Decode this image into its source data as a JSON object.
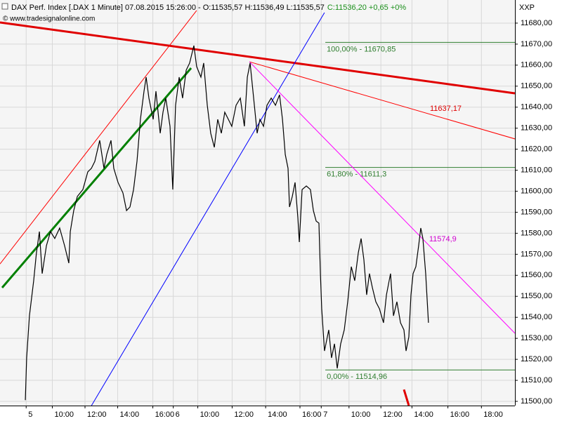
{
  "chart_data": {
    "type": "line",
    "title": "DAX Perf. Index [.DAX  1 Minute] 07.08.2015 15:26:00 - O:11535,57 H:11536,49 L:11535,57",
    "subtitle": "C:11536,20 +0,65 +0%",
    "watermark": "© www.tradesignalonline.com",
    "axis_label": "XXP",
    "grid": true,
    "xlim": [
      0,
      31.5
    ],
    "ylim": [
      11498,
      11691
    ],
    "yticks": [
      {
        "value": 11500,
        "label": "11500,00"
      },
      {
        "value": 11510,
        "label": "11510,00"
      },
      {
        "value": 11520,
        "label": "11520,00"
      },
      {
        "value": 11530,
        "label": "11530,00"
      },
      {
        "value": 11540,
        "label": "11540,00"
      },
      {
        "value": 11550,
        "label": "11550,00"
      },
      {
        "value": 11560,
        "label": "11560,00"
      },
      {
        "value": 11570,
        "label": "11570,00"
      },
      {
        "value": 11580,
        "label": "11580,00"
      },
      {
        "value": 11590,
        "label": "11590,00"
      },
      {
        "value": 11600,
        "label": "11600,00"
      },
      {
        "value": 11610,
        "label": "11610,00"
      },
      {
        "value": 11620,
        "label": "11620,00"
      },
      {
        "value": 11630,
        "label": "11630,00"
      },
      {
        "value": 11640,
        "label": "11640,00"
      },
      {
        "value": 11650,
        "label": "11650,00"
      },
      {
        "value": 11660,
        "label": "11660,00"
      },
      {
        "value": 11670,
        "label": "11670,00"
      },
      {
        "value": 11680,
        "label": "11680,00"
      }
    ],
    "xticks": [
      {
        "value": 1.6,
        "label": "5"
      },
      {
        "value": 3.2,
        "label": "10:00"
      },
      {
        "value": 5.2,
        "label": "12:00"
      },
      {
        "value": 7.2,
        "label": "14:00"
      },
      {
        "value": 9.35,
        "label": "16:00"
      },
      {
        "value": 10.6,
        "label": "6"
      },
      {
        "value": 12.1,
        "label": "10:00"
      },
      {
        "value": 14.2,
        "label": "12:00"
      },
      {
        "value": 16.25,
        "label": "14:00"
      },
      {
        "value": 18.35,
        "label": "16:00"
      },
      {
        "value": 19.65,
        "label": "7"
      },
      {
        "value": 21.35,
        "label": "10:00"
      },
      {
        "value": 23.3,
        "label": "12:00"
      },
      {
        "value": 25.2,
        "label": "14:00"
      },
      {
        "value": 27.4,
        "label": "16:00"
      },
      {
        "value": 29.45,
        "label": "18:00"
      }
    ],
    "series": [
      {
        "name": "DAX",
        "color": "#000000",
        "x": [
          1.55,
          1.63,
          1.8,
          2.06,
          2.23,
          2.41,
          2.58,
          2.84,
          3.09,
          3.35,
          3.65,
          3.95,
          4.21,
          4.3,
          4.51,
          4.73,
          5.07,
          5.37,
          5.59,
          5.8,
          6.1,
          6.36,
          6.53,
          6.79,
          6.96,
          7.22,
          7.52,
          7.74,
          7.95,
          8.17,
          8.38,
          8.59,
          8.81,
          8.94,
          9.11,
          9.37,
          9.54,
          9.8,
          9.97,
          10.14,
          10.4,
          10.57,
          10.74,
          10.96,
          11.17,
          11.39,
          11.6,
          11.86,
          12.03,
          12.29,
          12.46,
          12.68,
          12.89,
          13.11,
          13.32,
          13.54,
          13.75,
          13.97,
          14.18,
          14.44,
          14.7,
          14.95,
          15.13,
          15.3,
          15.56,
          15.73,
          15.9,
          16.12,
          16.33,
          16.59,
          16.85,
          17.1,
          17.28,
          17.45,
          17.62,
          17.71,
          17.88,
          18.05,
          18.22,
          18.31,
          18.48,
          18.74,
          18.99,
          19.17,
          19.34,
          19.51,
          19.6,
          19.68,
          19.85,
          20.11,
          20.28,
          20.46,
          20.63,
          20.84,
          21.06,
          21.27,
          21.49,
          21.7,
          21.92,
          22.09,
          22.26,
          22.43,
          22.6,
          22.78,
          22.99,
          23.21,
          23.46,
          23.64,
          23.89,
          24.07,
          24.28,
          24.5,
          24.71,
          24.84,
          25.01,
          25.14,
          25.27,
          25.44,
          25.61,
          25.74,
          25.87,
          26.04,
          26.21
        ],
        "values": [
          11500.6,
          11520.7,
          11540.7,
          11557.4,
          11570.8,
          11580.8,
          11560.8,
          11574.1,
          11580.8,
          11577.5,
          11582.5,
          11574.1,
          11565.8,
          11580.8,
          11590.8,
          11597.5,
          11600.8,
          11609.2,
          11610.9,
          11614.2,
          11624.2,
          11610.9,
          11617.5,
          11624.2,
          11610.9,
          11604.2,
          11599.2,
          11590.8,
          11592.5,
          11600.8,
          11614.2,
          11634.2,
          11647.6,
          11654.3,
          11644.3,
          11634.2,
          11647.6,
          11627.6,
          11637.6,
          11644.3,
          11630.9,
          11600.8,
          11640.9,
          11654.3,
          11644.3,
          11657.6,
          11661.0,
          11669.3,
          11659.3,
          11654.3,
          11661.0,
          11640.9,
          11627.6,
          11620.9,
          11634.2,
          11627.6,
          11637.6,
          11634.2,
          11630.9,
          11640.9,
          11644.3,
          11630.9,
          11654.3,
          11661.0,
          11640.9,
          11627.6,
          11634.2,
          11630.9,
          11640.9,
          11644.3,
          11640.9,
          11645.9,
          11634.2,
          11617.5,
          11610.9,
          11592.5,
          11597.5,
          11604.2,
          11587.5,
          11575.8,
          11600.8,
          11602.5,
          11600.8,
          11590.8,
          11585.8,
          11584.8,
          11560.8,
          11544.1,
          11524.0,
          11534.0,
          11520.7,
          11527.4,
          11515.7,
          11527.4,
          11534.0,
          11547.4,
          11564.1,
          11557.4,
          11570.8,
          11577.5,
          11567.4,
          11550.7,
          11560.8,
          11554.1,
          11547.4,
          11544.1,
          11537.4,
          11550.7,
          11560.8,
          11540.7,
          11547.4,
          11537.4,
          11534.0,
          11524.0,
          11530.7,
          11550.7,
          11560.8,
          11564.1,
          11574.1,
          11582.5,
          11577.5,
          11560.8,
          11537.4
        ]
      }
    ],
    "lines": [
      {
        "color": "#e00000",
        "thick": true,
        "x": [
          0,
          31.5
        ],
        "values": [
          11680.3,
          11646.6
        ]
      },
      {
        "color": "#ff0000",
        "thick": false,
        "x": [
          15.26,
          31.5
        ],
        "values": [
          11661.6,
          11624.9
        ]
      },
      {
        "color": "#ff0000",
        "thick": false,
        "x": [
          0,
          12.03
        ],
        "values": [
          11565.4,
          11686.0
        ]
      },
      {
        "color": "#0000ff",
        "thick": false,
        "x": [
          5.59,
          19.85
        ],
        "values": [
          11497.9,
          11685.0
        ]
      },
      {
        "color": "#008000",
        "thick": true,
        "x": [
          0.13,
          11.69
        ],
        "values": [
          11554.1,
          11658.6
        ]
      },
      {
        "color": "#ff00ff",
        "thick": false,
        "x": [
          15.26,
          31.5
        ],
        "values": [
          11661.6,
          11532.4
        ]
      },
      {
        "color": "#e00000",
        "thick": true,
        "x": [
          24.71,
          25.01
        ],
        "values": [
          11505.6,
          11498
        ]
      }
    ],
    "levels": [
      {
        "value": 11670.85,
        "label": "100,00% - 11670,85",
        "x": 19.9,
        "color": "#2e7d2e"
      },
      {
        "value": 11611.3,
        "label": "61,80% - 11611,3",
        "x": 19.9,
        "color": "#2e7d2e"
      },
      {
        "value": 11514.96,
        "label": "0,00% - 11514,96",
        "x": 19.9,
        "color": "#2e7d2e"
      }
    ],
    "annotations": [
      {
        "text": "11637,17",
        "x": 26.3,
        "y": 11639.2,
        "color": "#e00000"
      },
      {
        "text": "11574,9",
        "x": 26.25,
        "y": 11577.1,
        "color": "#d000d0"
      }
    ]
  }
}
